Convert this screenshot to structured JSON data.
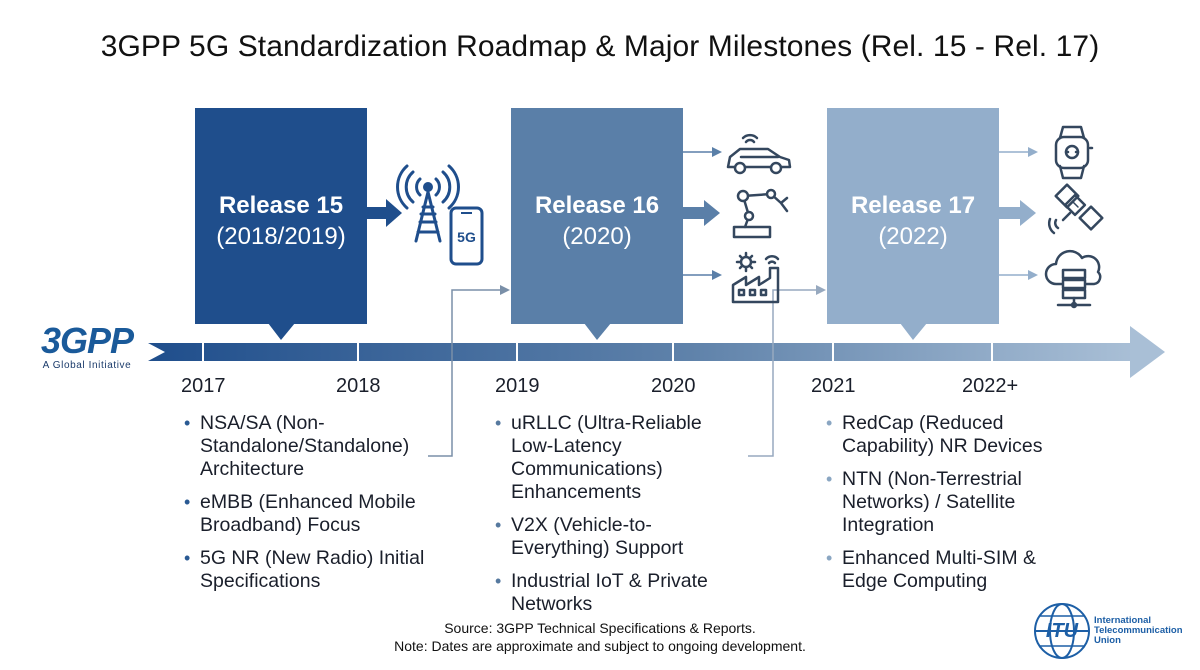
{
  "title": "3GPP 5G Standardization Roadmap & Major Milestones (Rel. 15 - Rel. 17)",
  "logo_3gpp": {
    "mark": "3GPP",
    "tagline": "A Global Initiative"
  },
  "releases": [
    {
      "name": "Release 15",
      "date": "(2018/2019)",
      "color": "#1f4e8c"
    },
    {
      "name": "Release 16",
      "date": "(2020)",
      "color": "#5a7fa8"
    },
    {
      "name": "Release 17",
      "date": "(2022)",
      "color": "#93aecb"
    }
  ],
  "years": [
    "2017",
    "2018",
    "2019",
    "2020",
    "2021",
    "2022+"
  ],
  "features": [
    [
      "NSA/SA (Non-Standalone/Standalone) Architecture",
      "eMBB (Enhanced Mobile Broadband) Focus",
      "5G NR (New Radio) Initial Specifications"
    ],
    [
      "uRLLC (Ultra-Reliable Low-Latency Communications) Enhancements",
      "V2X (Vehicle-to-Everything) Support",
      "Industrial IoT & Private Networks"
    ],
    [
      "RedCap (Reduced Capability) NR Devices",
      "NTN (Non-Terrestrial Networks) / Satellite Integration",
      "Enhanced Multi-SIM & Edge Computing"
    ]
  ],
  "icons": {
    "release15": [
      "5g-tower-icon",
      "5g-phone-icon"
    ],
    "release16": [
      "connected-car-icon",
      "robot-arm-icon",
      "smart-factory-icon"
    ],
    "release17": [
      "smartwatch-icon",
      "satellite-icon",
      "cloud-server-icon"
    ]
  },
  "phone_label": "5G",
  "source": "Source: 3GPP Technical Specifications & Reports.",
  "note": "Note: Dates are approximate and subject to ongoing development.",
  "itu_logo": {
    "mark": "ITU",
    "name": "International Telecommunication Union"
  }
}
